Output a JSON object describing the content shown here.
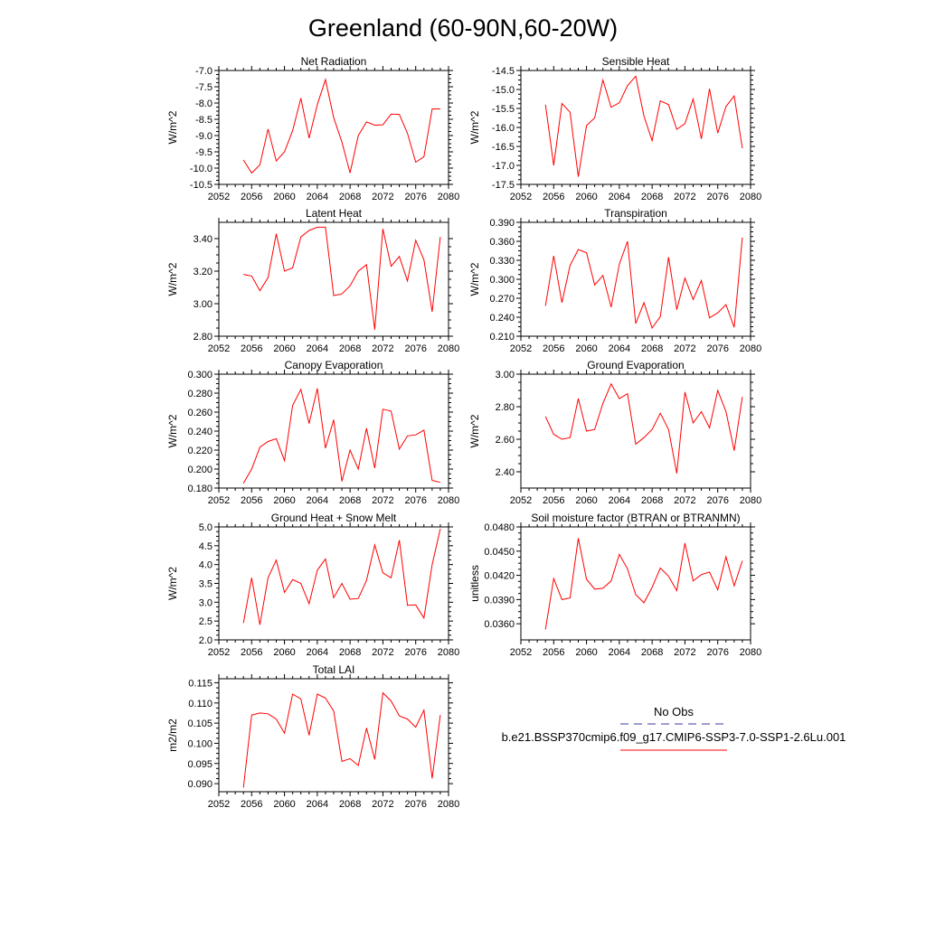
{
  "title": "Greenland (60-90N,60-20W)",
  "colors": {
    "model": "#ff0000",
    "obs": "#3a3aa0",
    "axis": "#000000"
  },
  "legend": {
    "obs_label": "No Obs",
    "model_label": "b.e21.BSSP370cmip6.f09_g17.CMIP6-SSP3-7.0-SSP1-2.6Lu.001"
  },
  "chart_data": [
    {
      "type": "line",
      "title": "Net Radiation",
      "xlabel": "",
      "ylabel": "W/m^2",
      "xlim": [
        2052,
        2080
      ],
      "ylim": [
        -10.5,
        -7.0
      ],
      "xticks": [
        "2052",
        "2056",
        "2060",
        "2064",
        "2068",
        "2072",
        "2076",
        "2080"
      ],
      "yticks": [
        "-10.5",
        "-10.0",
        "-9.5",
        "-9.0",
        "-8.5",
        "-8.0",
        "-7.5",
        "-7.0"
      ],
      "x": [
        2055,
        2056,
        2057,
        2058,
        2059,
        2060,
        2061,
        2062,
        2063,
        2064,
        2065,
        2066,
        2067,
        2068,
        2069,
        2070,
        2071,
        2072,
        2073,
        2074,
        2075,
        2076,
        2077,
        2078,
        2079
      ],
      "values": [
        -9.75,
        -10.15,
        -9.9,
        -8.8,
        -9.78,
        -9.5,
        -8.85,
        -7.85,
        -9.08,
        -8.05,
        -7.28,
        -8.45,
        -9.2,
        -10.15,
        -9.0,
        -8.58,
        -8.68,
        -8.67,
        -8.34,
        -8.35,
        -8.93,
        -9.82,
        -9.65,
        -8.18,
        -8.18
      ],
      "series": [
        {
          "name": "b.e21.BSSP370cmip6.f09_g17.CMIP6-SSP3-7.0-SSP1-2.6Lu.001"
        }
      ]
    },
    {
      "type": "line",
      "title": "Sensible Heat",
      "xlabel": "",
      "ylabel": "W/m^2",
      "xlim": [
        2052,
        2080
      ],
      "ylim": [
        -17.5,
        -14.5
      ],
      "xticks": [
        "2052",
        "2056",
        "2060",
        "2064",
        "2068",
        "2072",
        "2076",
        "2080"
      ],
      "yticks": [
        "-17.5",
        "-17.0",
        "-16.5",
        "-16.0",
        "-15.5",
        "-15.0",
        "-14.5"
      ],
      "x": [
        2055,
        2056,
        2057,
        2058,
        2059,
        2060,
        2061,
        2062,
        2063,
        2064,
        2065,
        2066,
        2067,
        2068,
        2069,
        2070,
        2071,
        2072,
        2073,
        2074,
        2075,
        2076,
        2077,
        2078,
        2079
      ],
      "values": [
        -15.4,
        -17.0,
        -15.37,
        -15.6,
        -17.3,
        -15.95,
        -15.75,
        -14.75,
        -15.47,
        -15.35,
        -14.9,
        -14.65,
        -15.7,
        -16.35,
        -15.3,
        -15.4,
        -16.05,
        -15.9,
        -15.25,
        -16.3,
        -14.98,
        -16.15,
        -15.45,
        -15.17,
        -16.55
      ],
      "series": [
        {
          "name": "b.e21.BSSP370cmip6.f09_g17.CMIP6-SSP3-7.0-SSP1-2.6Lu.001"
        }
      ]
    },
    {
      "type": "line",
      "title": "Latent Heat",
      "xlabel": "",
      "ylabel": "W/m^2",
      "xlim": [
        2052,
        2080
      ],
      "ylim": [
        2.8,
        3.5
      ],
      "xticks": [
        "2052",
        "2056",
        "2060",
        "2064",
        "2068",
        "2072",
        "2076",
        "2080"
      ],
      "yticks": [
        "2.80",
        "3.00",
        "3.20",
        "3.40"
      ],
      "x": [
        2055,
        2056,
        2057,
        2058,
        2059,
        2060,
        2061,
        2062,
        2063,
        2064,
        2065,
        2066,
        2067,
        2068,
        2069,
        2070,
        2071,
        2072,
        2073,
        2074,
        2075,
        2076,
        2077,
        2078,
        2079
      ],
      "values": [
        3.18,
        3.17,
        3.08,
        3.16,
        3.43,
        3.2,
        3.22,
        3.41,
        3.45,
        3.47,
        3.47,
        3.05,
        3.06,
        3.11,
        3.2,
        3.24,
        2.84,
        3.46,
        3.23,
        3.29,
        3.14,
        3.39,
        3.27,
        2.95,
        3.41
      ],
      "series": [
        {
          "name": "b.e21.BSSP370cmip6.f09_g17.CMIP6-SSP3-7.0-SSP1-2.6Lu.001"
        }
      ]
    },
    {
      "type": "line",
      "title": "Transpiration",
      "xlabel": "",
      "ylabel": "W/m^2",
      "xlim": [
        2052,
        2080
      ],
      "ylim": [
        0.21,
        0.39
      ],
      "xticks": [
        "2052",
        "2056",
        "2060",
        "2064",
        "2068",
        "2072",
        "2076",
        "2080"
      ],
      "yticks": [
        "0.210",
        "0.240",
        "0.270",
        "0.300",
        "0.330",
        "0.360",
        "0.390"
      ],
      "x": [
        2055,
        2056,
        2057,
        2058,
        2059,
        2060,
        2061,
        2062,
        2063,
        2064,
        2065,
        2066,
        2067,
        2068,
        2069,
        2070,
        2071,
        2072,
        2073,
        2074,
        2075,
        2076,
        2077,
        2078,
        2079
      ],
      "values": [
        0.258,
        0.337,
        0.263,
        0.322,
        0.347,
        0.342,
        0.291,
        0.306,
        0.256,
        0.324,
        0.36,
        0.23,
        0.263,
        0.223,
        0.241,
        0.335,
        0.252,
        0.302,
        0.268,
        0.298,
        0.239,
        0.247,
        0.26,
        0.224,
        0.366
      ],
      "series": [
        {
          "name": "b.e21.BSSP370cmip6.f09_g17.CMIP6-SSP3-7.0-SSP1-2.6Lu.001"
        }
      ]
    },
    {
      "type": "line",
      "title": "Canopy Evaporation",
      "xlabel": "",
      "ylabel": "W/m^2",
      "xlim": [
        2052,
        2080
      ],
      "ylim": [
        0.18,
        0.3
      ],
      "xticks": [
        "2052",
        "2056",
        "2060",
        "2064",
        "2068",
        "2072",
        "2076",
        "2080"
      ],
      "yticks": [
        "0.180",
        "0.200",
        "0.220",
        "0.240",
        "0.260",
        "0.280",
        "0.300"
      ],
      "x": [
        2055,
        2056,
        2057,
        2058,
        2059,
        2060,
        2061,
        2062,
        2063,
        2064,
        2065,
        2066,
        2067,
        2068,
        2069,
        2070,
        2071,
        2072,
        2073,
        2074,
        2075,
        2076,
        2077,
        2078,
        2079
      ],
      "values": [
        0.185,
        0.2,
        0.223,
        0.229,
        0.232,
        0.209,
        0.267,
        0.284,
        0.248,
        0.285,
        0.222,
        0.252,
        0.187,
        0.22,
        0.2,
        0.243,
        0.201,
        0.263,
        0.261,
        0.221,
        0.235,
        0.236,
        0.241,
        0.188,
        0.186
      ],
      "series": [
        {
          "name": "b.e21.BSSP370cmip6.f09_g17.CMIP6-SSP3-7.0-SSP1-2.6Lu.001"
        }
      ]
    },
    {
      "type": "line",
      "title": "Ground Evaporation",
      "xlabel": "",
      "ylabel": "W/m^2",
      "xlim": [
        2052,
        2080
      ],
      "ylim": [
        2.3,
        3.0
      ],
      "xticks": [
        "2052",
        "2056",
        "2060",
        "2064",
        "2068",
        "2072",
        "2076",
        "2080"
      ],
      "yticks": [
        "2.40",
        "2.60",
        "2.80",
        "3.00"
      ],
      "x": [
        2055,
        2056,
        2057,
        2058,
        2059,
        2060,
        2061,
        2062,
        2063,
        2064,
        2065,
        2066,
        2067,
        2068,
        2069,
        2070,
        2071,
        2072,
        2073,
        2074,
        2075,
        2076,
        2077,
        2078,
        2079
      ],
      "values": [
        2.74,
        2.63,
        2.6,
        2.61,
        2.85,
        2.65,
        2.66,
        2.82,
        2.94,
        2.85,
        2.88,
        2.57,
        2.61,
        2.66,
        2.76,
        2.66,
        2.39,
        2.89,
        2.7,
        2.77,
        2.67,
        2.9,
        2.77,
        2.53,
        2.86
      ],
      "series": [
        {
          "name": "b.e21.BSSP370cmip6.f09_g17.CMIP6-SSP3-7.0-SSP1-2.6Lu.001"
        }
      ]
    },
    {
      "type": "line",
      "title": "Ground Heat + Snow Melt",
      "xlabel": "",
      "ylabel": "W/m^2",
      "xlim": [
        2052,
        2080
      ],
      "ylim": [
        2.0,
        5.0
      ],
      "xticks": [
        "2052",
        "2056",
        "2060",
        "2064",
        "2068",
        "2072",
        "2076",
        "2080"
      ],
      "yticks": [
        "2.0",
        "2.5",
        "3.0",
        "3.5",
        "4.0",
        "4.5",
        "5.0"
      ],
      "x": [
        2055,
        2056,
        2057,
        2058,
        2059,
        2060,
        2061,
        2062,
        2063,
        2064,
        2065,
        2066,
        2067,
        2068,
        2069,
        2070,
        2071,
        2072,
        2073,
        2074,
        2075,
        2076,
        2077,
        2078,
        2079
      ],
      "values": [
        2.45,
        3.65,
        2.4,
        3.65,
        4.12,
        3.26,
        3.6,
        3.5,
        2.96,
        3.85,
        4.15,
        3.12,
        3.5,
        3.08,
        3.1,
        3.58,
        4.52,
        3.78,
        3.65,
        4.65,
        2.92,
        2.93,
        2.58,
        4.0,
        4.95
      ],
      "series": [
        {
          "name": "b.e21.BSSP370cmip6.f09_g17.CMIP6-SSP3-7.0-SSP1-2.6Lu.001"
        }
      ]
    },
    {
      "type": "line",
      "title": "Soil moisture factor (BTRAN or BTRANMN)",
      "xlabel": "",
      "ylabel": "unitless",
      "xlim": [
        2052,
        2080
      ],
      "ylim": [
        0.034,
        0.048
      ],
      "xticks": [
        "2052",
        "2056",
        "2060",
        "2064",
        "2068",
        "2072",
        "2076",
        "2080"
      ],
      "yticks": [
        "0.0360",
        "0.0390",
        "0.0420",
        "0.0450",
        "0.0480"
      ],
      "x": [
        2055,
        2056,
        2057,
        2058,
        2059,
        2060,
        2061,
        2062,
        2063,
        2064,
        2065,
        2066,
        2067,
        2068,
        2069,
        2070,
        2071,
        2072,
        2073,
        2074,
        2075,
        2076,
        2077,
        2078,
        2079
      ],
      "values": [
        0.0353,
        0.0416,
        0.039,
        0.0392,
        0.0466,
        0.0415,
        0.0403,
        0.0404,
        0.0413,
        0.0446,
        0.0428,
        0.0396,
        0.0386,
        0.0405,
        0.0429,
        0.0419,
        0.0401,
        0.046,
        0.0413,
        0.0421,
        0.0424,
        0.0402,
        0.0443,
        0.0407,
        0.0438
      ],
      "series": [
        {
          "name": "b.e21.BSSP370cmip6.f09_g17.CMIP6-SSP3-7.0-SSP1-2.6Lu.001"
        }
      ]
    },
    {
      "type": "line",
      "title": "Total LAI",
      "xlabel": "",
      "ylabel": "m2/m2",
      "xlim": [
        2052,
        2080
      ],
      "ylim": [
        0.088,
        0.116
      ],
      "xticks": [
        "2052",
        "2056",
        "2060",
        "2064",
        "2068",
        "2072",
        "2076",
        "2080"
      ],
      "yticks": [
        "0.090",
        "0.095",
        "0.100",
        "0.105",
        "0.110",
        "0.115"
      ],
      "x": [
        2055,
        2056,
        2057,
        2058,
        2059,
        2060,
        2061,
        2062,
        2063,
        2064,
        2065,
        2066,
        2067,
        2068,
        2069,
        2070,
        2071,
        2072,
        2073,
        2074,
        2075,
        2076,
        2077,
        2078,
        2079
      ],
      "values": [
        0.089,
        0.107,
        0.1075,
        0.1073,
        0.106,
        0.1025,
        0.1122,
        0.111,
        0.102,
        0.1122,
        0.1112,
        0.108,
        0.0955,
        0.0962,
        0.0945,
        0.1038,
        0.096,
        0.1125,
        0.1105,
        0.1068,
        0.106,
        0.104,
        0.1082,
        0.0913,
        0.107
      ],
      "series": [
        {
          "name": "b.e21.BSSP370cmip6.f09_g17.CMIP6-SSP3-7.0-SSP1-2.6Lu.001"
        }
      ]
    }
  ]
}
